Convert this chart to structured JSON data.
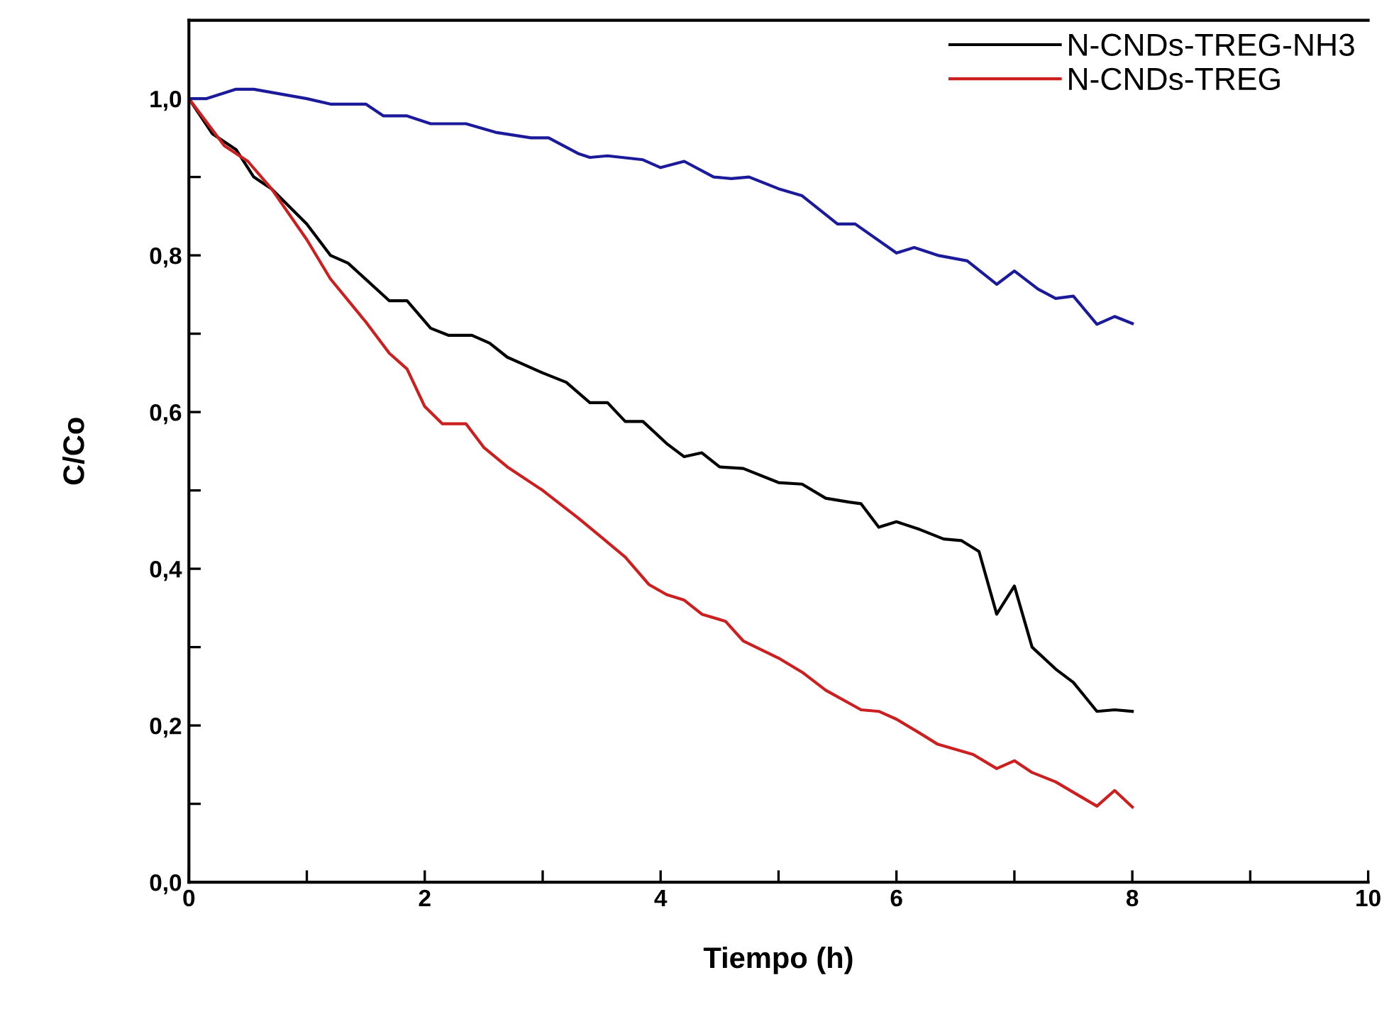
{
  "chart_data": {
    "type": "line",
    "xlabel": "Tiempo (h)",
    "ylabel": "C/Co",
    "xlim": [
      0,
      10
    ],
    "ylim": [
      0,
      1.1
    ],
    "xticks": [
      {
        "value": 0,
        "label": "0"
      },
      {
        "value": 1,
        "label": null
      },
      {
        "value": 2,
        "label": "2"
      },
      {
        "value": 3,
        "label": null
      },
      {
        "value": 4,
        "label": "4"
      },
      {
        "value": 5,
        "label": null
      },
      {
        "value": 6,
        "label": "6"
      },
      {
        "value": 7,
        "label": null
      },
      {
        "value": 8,
        "label": "8"
      },
      {
        "value": 9,
        "label": null
      },
      {
        "value": 10,
        "label": "10"
      }
    ],
    "yticks": [
      {
        "value": 0,
        "label": "0,0"
      },
      {
        "value": 0.1,
        "label": null
      },
      {
        "value": 0.2,
        "label": "0,2"
      },
      {
        "value": 0.3,
        "label": null
      },
      {
        "value": 0.4,
        "label": "0,4"
      },
      {
        "value": 0.5,
        "label": null
      },
      {
        "value": 0.6,
        "label": "0,6"
      },
      {
        "value": 0.7,
        "label": null
      },
      {
        "value": 0.8,
        "label": "0,8"
      },
      {
        "value": 0.9,
        "label": null
      },
      {
        "value": 1.0,
        "label": "1,0"
      }
    ],
    "grid": false,
    "legend": "top right",
    "marker": "none",
    "line_style": "solid",
    "series": [
      {
        "name": "N-CNDs-TREG-NH3",
        "color": "#000000",
        "x": [
          0,
          0.2,
          0.4,
          0.55,
          0.7,
          1.0,
          1.2,
          1.35,
          1.7,
          1.85,
          2.05,
          2.2,
          2.4,
          2.55,
          2.7,
          3.0,
          3.2,
          3.4,
          3.55,
          3.7,
          3.85,
          4.05,
          4.2,
          4.35,
          4.5,
          4.7,
          5.0,
          5.2,
          5.4,
          5.6,
          5.7,
          5.85,
          6.0,
          6.2,
          6.4,
          6.55,
          6.7,
          6.85,
          7.0,
          7.15,
          7.35,
          7.5,
          7.7,
          7.85,
          8.0
        ],
        "values": [
          1.0,
          0.955,
          0.935,
          0.9,
          0.885,
          0.84,
          0.8,
          0.79,
          0.742,
          0.742,
          0.707,
          0.698,
          0.698,
          0.688,
          0.67,
          0.65,
          0.638,
          0.612,
          0.612,
          0.588,
          0.588,
          0.56,
          0.543,
          0.548,
          0.53,
          0.528,
          0.51,
          0.508,
          0.49,
          0.485,
          0.483,
          0.453,
          0.46,
          0.45,
          0.438,
          0.436,
          0.422,
          0.342,
          0.378,
          0.3,
          0.272,
          0.255,
          0.218,
          0.22,
          0.218
        ]
      },
      {
        "name": "N-CNDs-TREG",
        "color": "#cc1f1f",
        "x": [
          0,
          0.3,
          0.5,
          0.7,
          1.0,
          1.2,
          1.5,
          1.7,
          1.85,
          2.0,
          2.15,
          2.35,
          2.5,
          2.7,
          3.0,
          3.3,
          3.5,
          3.7,
          3.9,
          4.05,
          4.2,
          4.35,
          4.55,
          4.7,
          5.0,
          5.2,
          5.4,
          5.7,
          5.85,
          6.0,
          6.2,
          6.35,
          6.65,
          6.85,
          7.0,
          7.15,
          7.35,
          7.7,
          7.85,
          8.0
        ],
        "values": [
          1.0,
          0.94,
          0.92,
          0.885,
          0.82,
          0.77,
          0.715,
          0.675,
          0.655,
          0.607,
          0.585,
          0.585,
          0.555,
          0.53,
          0.5,
          0.465,
          0.44,
          0.415,
          0.38,
          0.367,
          0.36,
          0.342,
          0.333,
          0.308,
          0.286,
          0.268,
          0.245,
          0.22,
          0.218,
          0.208,
          0.19,
          0.176,
          0.163,
          0.145,
          0.155,
          0.14,
          0.128,
          0.097,
          0.117,
          0.096
        ]
      },
      {
        "color": "#1a1a9a",
        "x": [
          0,
          0.15,
          0.4,
          0.55,
          1.0,
          1.2,
          1.5,
          1.65,
          1.85,
          2.05,
          2.35,
          2.6,
          2.9,
          3.05,
          3.3,
          3.4,
          3.55,
          3.85,
          4.0,
          4.2,
          4.45,
          4.6,
          4.75,
          5.0,
          5.2,
          5.5,
          5.65,
          6.0,
          6.15,
          6.35,
          6.6,
          6.85,
          7.0,
          7.2,
          7.35,
          7.5,
          7.7,
          7.85,
          8.0
        ],
        "values": [
          1.0,
          1.0,
          1.012,
          1.012,
          1.0,
          0.993,
          0.993,
          0.978,
          0.978,
          0.968,
          0.968,
          0.957,
          0.95,
          0.95,
          0.93,
          0.925,
          0.927,
          0.922,
          0.912,
          0.92,
          0.9,
          0.898,
          0.9,
          0.885,
          0.876,
          0.84,
          0.84,
          0.803,
          0.81,
          0.8,
          0.793,
          0.763,
          0.78,
          0.757,
          0.745,
          0.748,
          0.712,
          0.722,
          0.713
        ]
      }
    ]
  }
}
